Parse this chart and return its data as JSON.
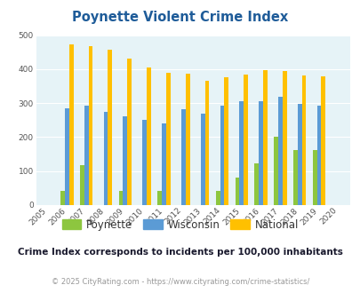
{
  "title": "Poynette Violent Crime Index",
  "years": [
    "2005",
    "2006",
    "2007",
    "2008",
    "2009",
    "2010",
    "2011",
    "2012",
    "2013",
    "2014",
    "2015",
    "2016",
    "2017",
    "2018",
    "2019",
    "2020"
  ],
  "poynette": [
    0,
    42,
    118,
    0,
    42,
    0,
    42,
    0,
    0,
    42,
    82,
    122,
    202,
    163,
    163,
    0
  ],
  "wisconsin": [
    0,
    284,
    292,
    274,
    260,
    250,
    240,
    282,
    270,
    292,
    305,
    305,
    318,
    298,
    293,
    0
  ],
  "national": [
    0,
    474,
    467,
    456,
    432,
    406,
    388,
    387,
    367,
    376,
    383,
    397,
    394,
    381,
    380,
    0
  ],
  "poynette_color": "#8dc63f",
  "wisconsin_color": "#5b9bd5",
  "national_color": "#ffc000",
  "bg_color": "#e6f3f7",
  "ylim": [
    0,
    500
  ],
  "yticks": [
    0,
    100,
    200,
    300,
    400,
    500
  ],
  "subtitle": "Crime Index corresponds to incidents per 100,000 inhabitants",
  "copyright": "© 2025 CityRating.com - https://www.cityrating.com/crime-statistics/",
  "title_color": "#1f5c99",
  "subtitle_color": "#1a1a2e",
  "copyright_color": "#999999",
  "legend_labels": [
    "Poynette",
    "Wisconsin",
    "National"
  ]
}
